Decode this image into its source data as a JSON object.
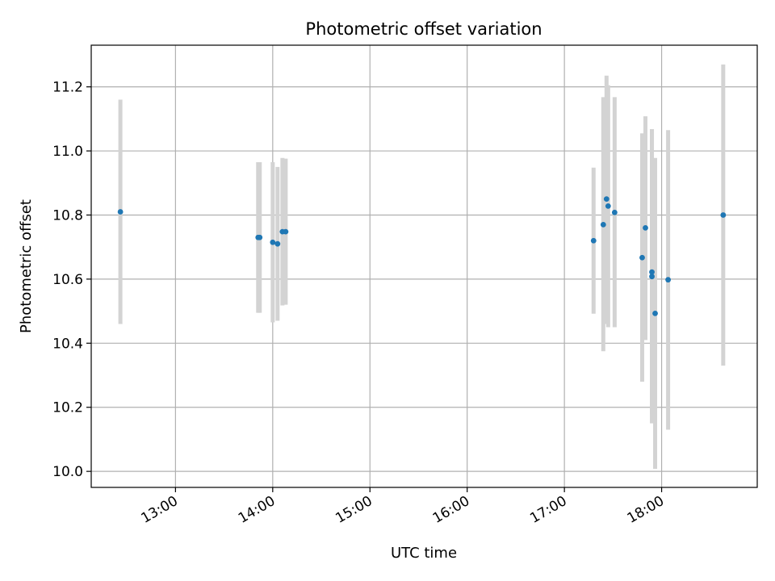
{
  "chart_data": {
    "type": "scatter",
    "title": "Photometric offset variation",
    "xlabel": "UTC time",
    "ylabel": "Photometric offset",
    "x_ticks": [
      "13:00",
      "14:00",
      "15:00",
      "16:00",
      "17:00",
      "18:00"
    ],
    "y_ticks": [
      "10.0",
      "10.2",
      "10.4",
      "10.6",
      "10.8",
      "11.0",
      "11.2"
    ],
    "xlim": [
      "12:08",
      "18:59"
    ],
    "ylim": [
      9.95,
      11.33
    ],
    "grid": true,
    "point_color": "#1f77b4",
    "errorbar_color": "#d3d3d3",
    "series": [
      {
        "points": [
          {
            "x": "12:26",
            "y": 10.81,
            "ylow": 10.46,
            "yhigh": 11.16
          },
          {
            "x": "13:51",
            "y": 10.73,
            "ylow": 10.495,
            "yhigh": 10.965
          },
          {
            "x": "13:52",
            "y": 10.73,
            "ylow": 10.495,
            "yhigh": 10.965
          },
          {
            "x": "14:00",
            "y": 10.715,
            "ylow": 10.465,
            "yhigh": 10.965
          },
          {
            "x": "14:03",
            "y": 10.71,
            "ylow": 10.47,
            "yhigh": 10.95
          },
          {
            "x": "14:06",
            "y": 10.748,
            "ylow": 10.518,
            "yhigh": 10.978
          },
          {
            "x": "14:08",
            "y": 10.748,
            "ylow": 10.52,
            "yhigh": 10.976
          },
          {
            "x": "17:18",
            "y": 10.72,
            "ylow": 10.492,
            "yhigh": 10.948
          },
          {
            "x": "17:24",
            "y": 10.77,
            "ylow": 10.375,
            "yhigh": 11.168
          },
          {
            "x": "17:26",
            "y": 10.85,
            "ylow": 10.46,
            "yhigh": 11.235
          },
          {
            "x": "17:27",
            "y": 10.828,
            "ylow": 10.45,
            "yhigh": 11.205
          },
          {
            "x": "17:31",
            "y": 10.808,
            "ylow": 10.45,
            "yhigh": 11.168
          },
          {
            "x": "17:48",
            "y": 10.667,
            "ylow": 10.28,
            "yhigh": 11.055
          },
          {
            "x": "17:50",
            "y": 10.76,
            "ylow": 10.41,
            "yhigh": 11.108
          },
          {
            "x": "17:54",
            "y": 10.622,
            "ylow": 10.178,
            "yhigh": 11.068
          },
          {
            "x": "17:54",
            "y": 10.608,
            "ylow": 10.15,
            "yhigh": 11.068
          },
          {
            "x": "17:56",
            "y": 10.493,
            "ylow": 10.008,
            "yhigh": 10.978
          },
          {
            "x": "18:04",
            "y": 10.598,
            "ylow": 10.13,
            "yhigh": 11.065
          },
          {
            "x": "18:38",
            "y": 10.8,
            "ylow": 10.33,
            "yhigh": 11.27
          }
        ]
      }
    ]
  }
}
